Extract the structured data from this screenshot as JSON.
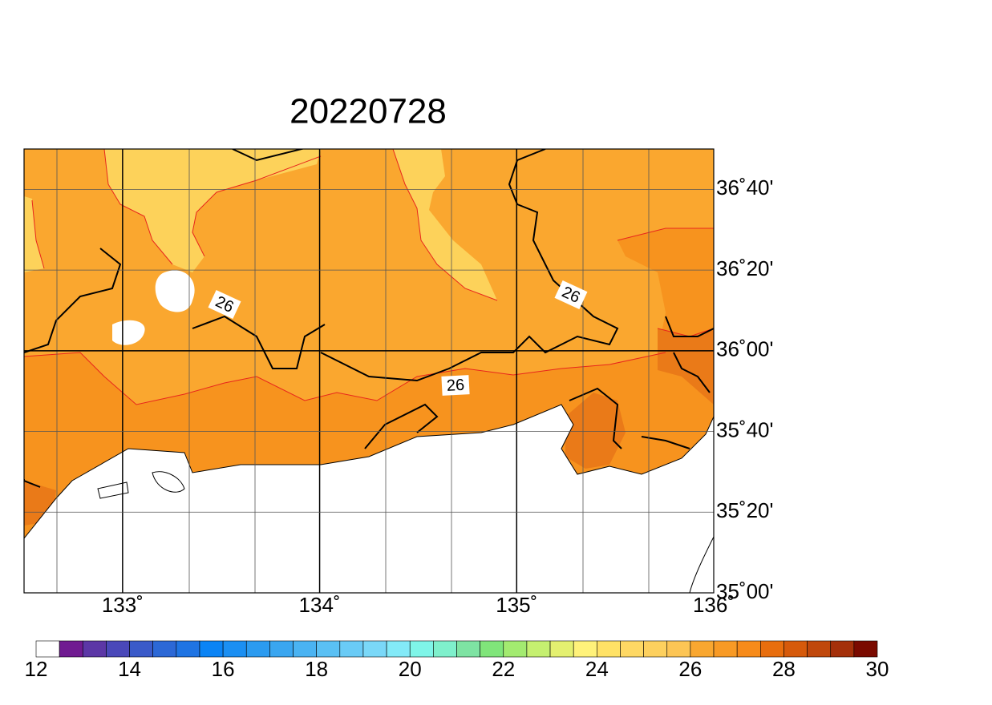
{
  "map": {
    "title": "20220728",
    "xlim": [
      132.5,
      136
    ],
    "ylim": [
      35,
      36.8333
    ],
    "x_labels": [
      {
        "value": 133,
        "label": "133˚"
      },
      {
        "value": 134,
        "label": "134˚"
      },
      {
        "value": 135,
        "label": "135˚"
      },
      {
        "value": 136,
        "label": "136˚"
      }
    ],
    "y_labels": [
      {
        "value": 36.6667,
        "label": "36˚40'"
      },
      {
        "value": 36.3333,
        "label": "36˚20'"
      },
      {
        "value": 36,
        "label": "36˚00'"
      },
      {
        "value": 35.6667,
        "label": "35˚40'"
      },
      {
        "value": 35.3333,
        "label": "35˚20'"
      },
      {
        "value": 35,
        "label": "35˚00'"
      }
    ],
    "contour_labels": [
      "26",
      "26",
      "26"
    ],
    "colorbar": {
      "labels": [
        12,
        14,
        16,
        18,
        20,
        22,
        24,
        26,
        28,
        30
      ],
      "colors": [
        "#ffffff",
        "#701b91",
        "#5c37a6",
        "#4a48b9",
        "#3a5ac9",
        "#2c68d6",
        "#1f74e3",
        "#0b84f5",
        "#1b8ff2",
        "#2b9bf0",
        "#3aa6f0",
        "#4ab3f2",
        "#5ac0f4",
        "#6acbf6",
        "#7ad8f8",
        "#83eaf8",
        "#7ff5e8",
        "#7ff0cc",
        "#7ee3a3",
        "#80e57a",
        "#a3eb70",
        "#c5f070",
        "#e4f070",
        "#fff27a",
        "#ffe266",
        "#fed864",
        "#fdd05e",
        "#fcc555",
        "#f9a730",
        "#f89a25",
        "#f78b1a",
        "#e86e0e",
        "#d65a0b",
        "#c0480c",
        "#a4300a",
        "#7a0a00"
      ]
    }
  }
}
